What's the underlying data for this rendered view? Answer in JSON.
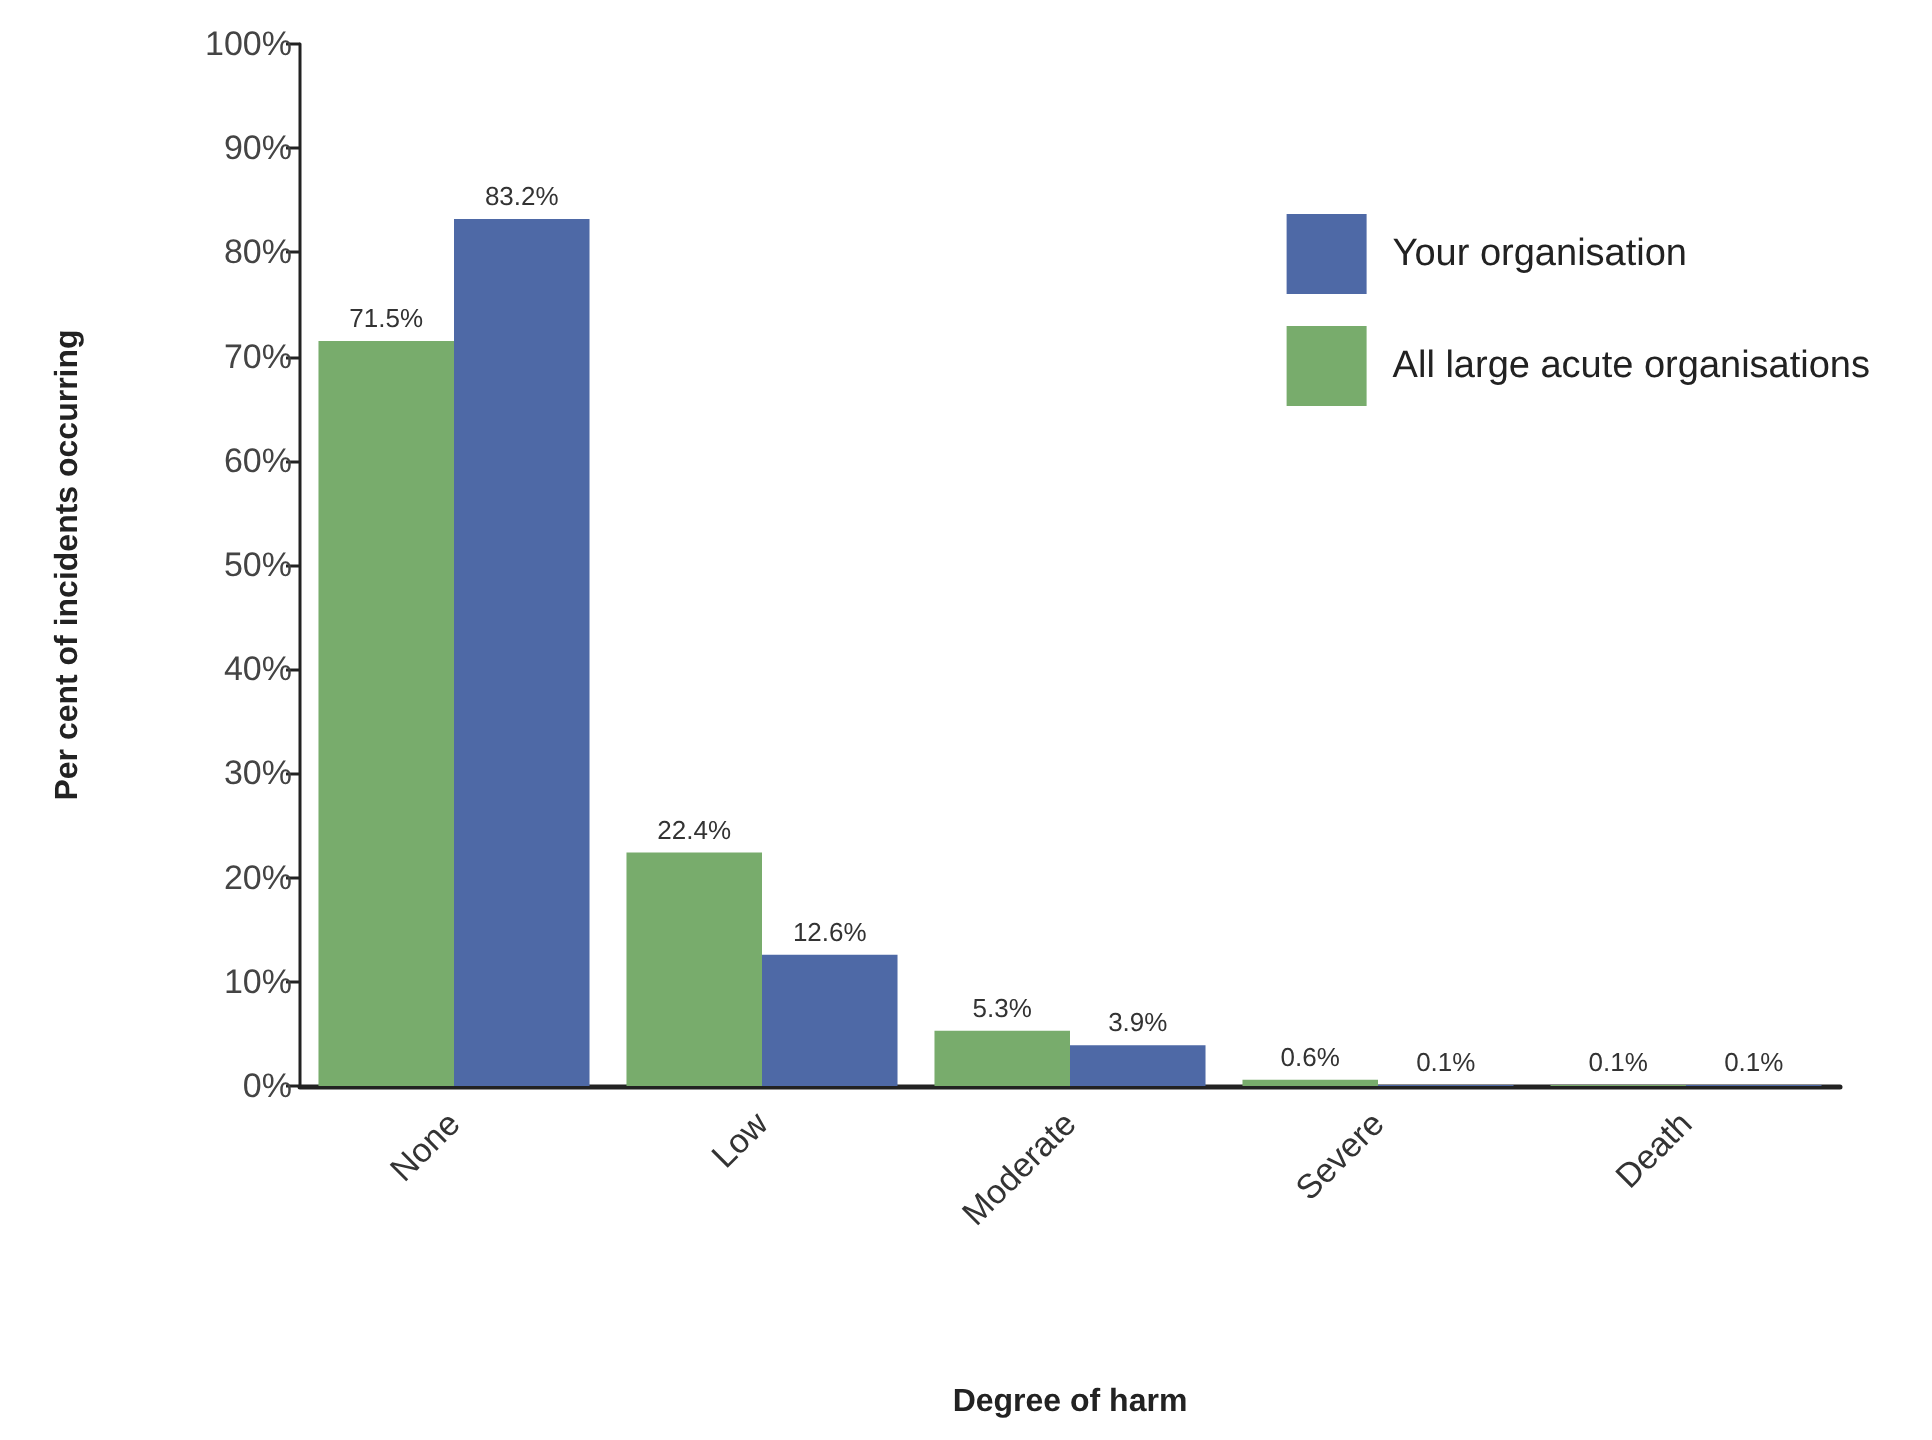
{
  "chart_data": {
    "type": "bar",
    "xlabel": "Degree of harm",
    "ylabel": "Per cent of incidents occurring",
    "categories": [
      "None",
      "Low",
      "Moderate",
      "Severe",
      "Death"
    ],
    "series": [
      {
        "name": "All large acute organisations",
        "color": "#78ac6c",
        "values": [
          71.5,
          22.4,
          5.3,
          0.6,
          0.1
        ],
        "value_labels": [
          "71.5%",
          "22.4%",
          "5.3%",
          "0.6%",
          "0.1%"
        ]
      },
      {
        "name": "Your organisation",
        "color": "#4e69a6",
        "values": [
          83.2,
          12.6,
          3.9,
          0.1,
          0.1
        ],
        "value_labels": [
          "83.2%",
          "12.6%",
          "3.9%",
          "0.1%",
          "0.1%"
        ]
      }
    ],
    "ylim": [
      0,
      100
    ],
    "yticks": [
      {
        "value": 0,
        "label": "0%"
      },
      {
        "value": 10,
        "label": "10%"
      },
      {
        "value": 20,
        "label": "20%"
      },
      {
        "value": 30,
        "label": "30%"
      },
      {
        "value": 40,
        "label": "40%"
      },
      {
        "value": 50,
        "label": "50%"
      },
      {
        "value": 60,
        "label": "60%"
      },
      {
        "value": 70,
        "label": "70%"
      },
      {
        "value": 80,
        "label": "80%"
      },
      {
        "value": 90,
        "label": "90%"
      },
      {
        "value": 100,
        "label": "100%"
      }
    ],
    "grid": false,
    "legend": "top right"
  }
}
